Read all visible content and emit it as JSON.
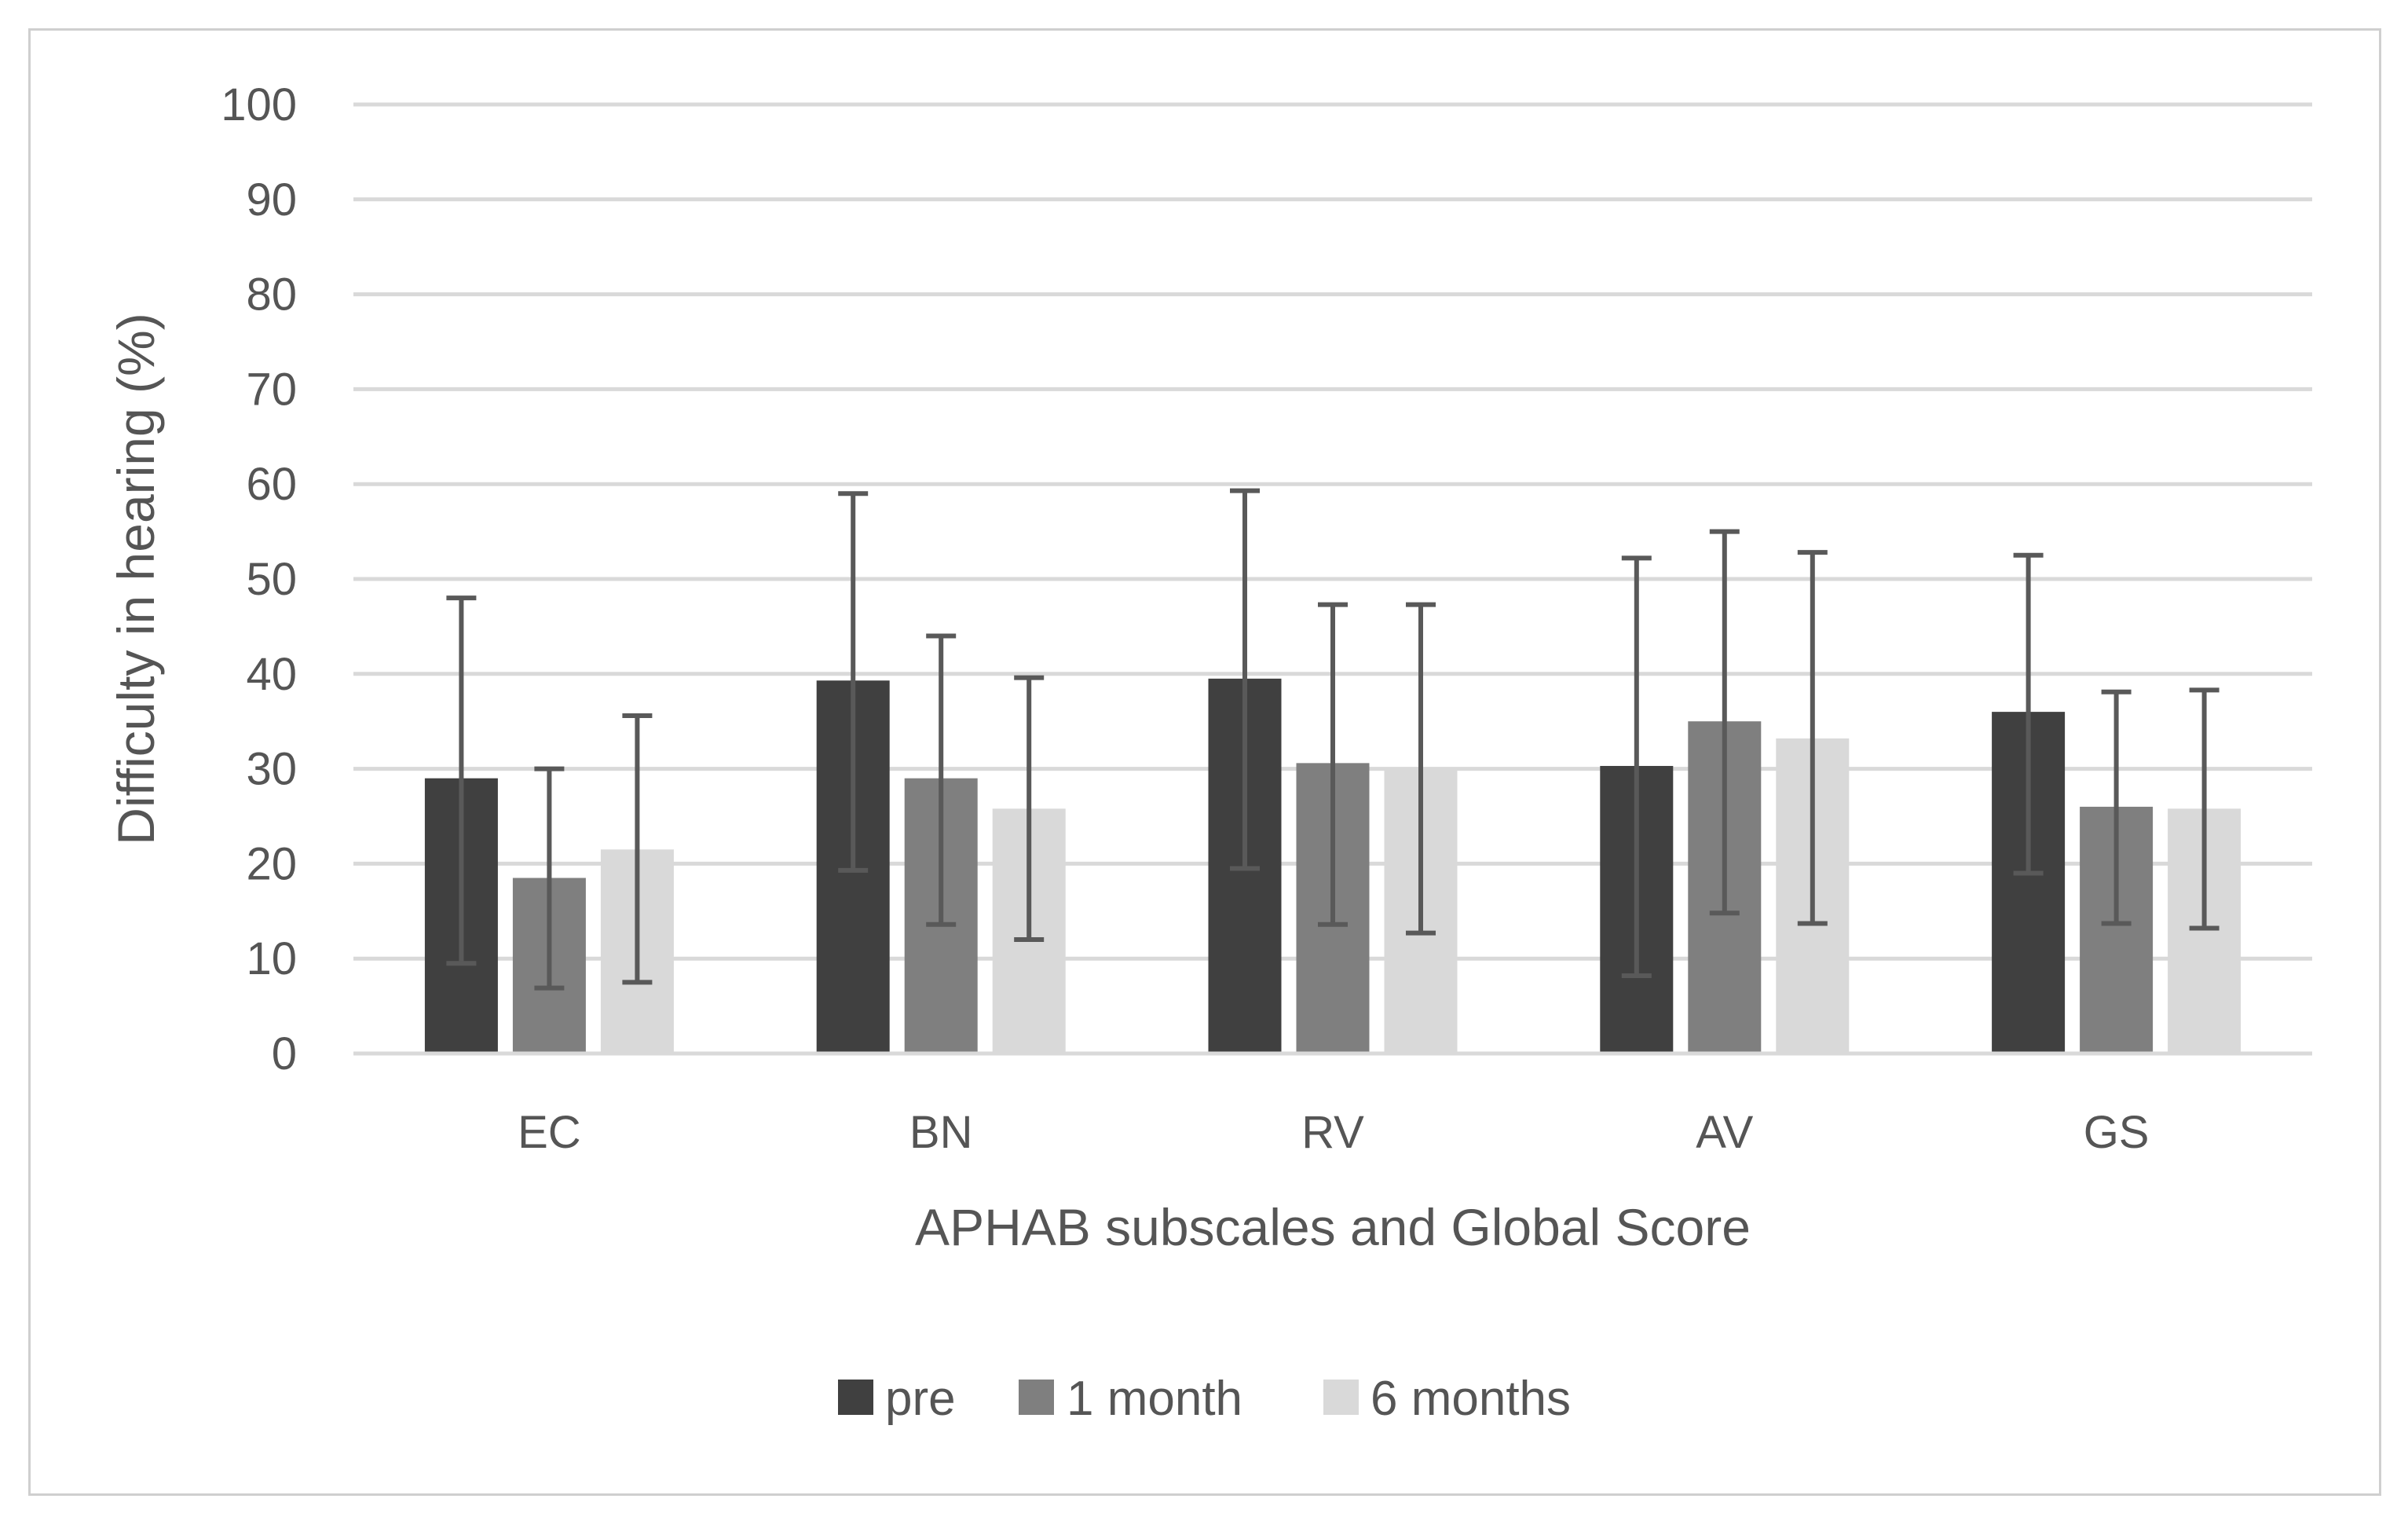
{
  "chart_data": {
    "type": "bar",
    "title": "",
    "xlabel": "APHAB subscales and Global Score",
    "ylabel": "Difficulty in hearing (%)",
    "ylim": [
      0,
      100
    ],
    "yticks": [
      0,
      10,
      20,
      30,
      40,
      50,
      60,
      70,
      80,
      90,
      100
    ],
    "grid": true,
    "legend_position": "bottom",
    "categories": [
      "EC",
      "BN",
      "RV",
      "AV",
      "GS"
    ],
    "series": [
      {
        "name": "pre",
        "color": "#404040",
        "values": [
          29,
          39.3,
          39.5,
          30.3,
          36
        ],
        "error_low": [
          9.5,
          19.3,
          19.5,
          8.2,
          19
        ],
        "error_high": [
          48,
          59,
          59.3,
          52.2,
          52.5
        ]
      },
      {
        "name": "1 month",
        "color": "#7f7f7f",
        "values": [
          18.5,
          29,
          30.6,
          35,
          26
        ],
        "error_low": [
          6.9,
          13.6,
          13.6,
          14.8,
          13.7
        ],
        "error_high": [
          30,
          44,
          47.3,
          55,
          38.1
        ]
      },
      {
        "name": "6 months",
        "color": "#d9d9d9",
        "values": [
          21.5,
          25.8,
          30,
          33.2,
          25.8
        ],
        "error_low": [
          7.5,
          12,
          12.7,
          13.7,
          13.2
        ],
        "error_high": [
          35.6,
          39.6,
          47.3,
          52.8,
          38.3
        ]
      }
    ]
  }
}
